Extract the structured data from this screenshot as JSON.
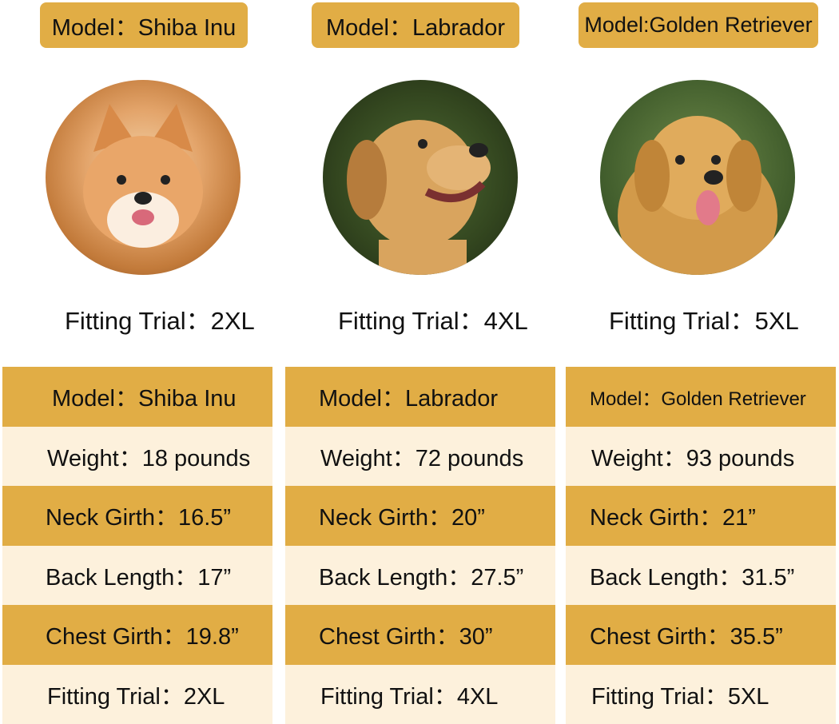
{
  "colors": {
    "gold": "#e1ad45",
    "cream": "#fdf1dc"
  },
  "dogs": [
    {
      "model_tag": "Model：Shiba Inu",
      "photo": "shiba-inu-photo",
      "fitting_trial": "Fitting Trial：2XL",
      "rows": [
        "Model：Shiba Inu",
        "Weight：18 pounds",
        "Neck Girth：16.5”",
        "Back Length：17”",
        "Chest Girth：19.8”",
        "Fitting Trial：2XL"
      ]
    },
    {
      "model_tag": "Model：Labrador",
      "photo": "labrador-photo",
      "fitting_trial": "Fitting Trial：4XL",
      "rows": [
        "Model：Labrador",
        "Weight：72 pounds",
        "Neck Girth：20”",
        "Back Length：27.5”",
        "Chest Girth：30”",
        "Fitting Trial：4XL"
      ]
    },
    {
      "model_tag": "Model:Golden Retriever",
      "photo": "golden-retriever-photo",
      "fitting_trial": "Fitting Trial：5XL",
      "rows": [
        "Model：Golden Retriever",
        "Weight：93 pounds",
        "Neck Girth：21”",
        "Back Length：31.5”",
        "Chest Girth：35.5”",
        "Fitting Trial：5XL"
      ]
    }
  ]
}
